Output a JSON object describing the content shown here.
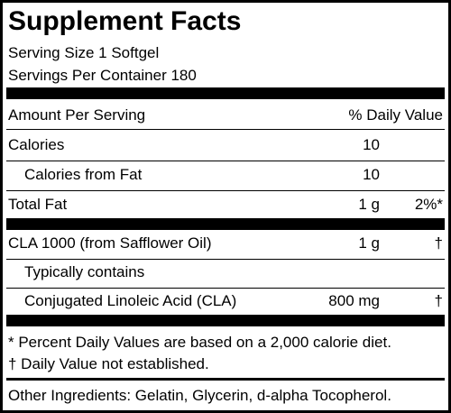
{
  "header": {
    "title": "Supplement Facts"
  },
  "serving": {
    "size": "Serving Size 1 Softgel",
    "per_container": "Servings Per Container 180"
  },
  "table": {
    "header": {
      "left": "Amount Per Serving",
      "right": "% Daily Value"
    },
    "rows": [
      {
        "label": "Calories",
        "amount": "10"
      },
      {
        "label": "Calories from Fat",
        "amount": "10"
      },
      {
        "label": "Total Fat",
        "amount": "1 g",
        "dv": "2%*"
      },
      {
        "label": "CLA 1000 (from Safflower Oil)",
        "amount": "1 g",
        "dv": "†"
      },
      {
        "label": "Typically contains"
      },
      {
        "label": "Conjugated Linoleic Acid (CLA)",
        "amount": "800 mg",
        "dv": "†"
      }
    ]
  },
  "footnotes": [
    "* Percent Daily Values are based on a 2,000 calorie diet.",
    "† Daily Value not established."
  ],
  "other_ingredients": "Other Ingredients: Gelatin, Glycerin, d-alpha Tocopherol."
}
